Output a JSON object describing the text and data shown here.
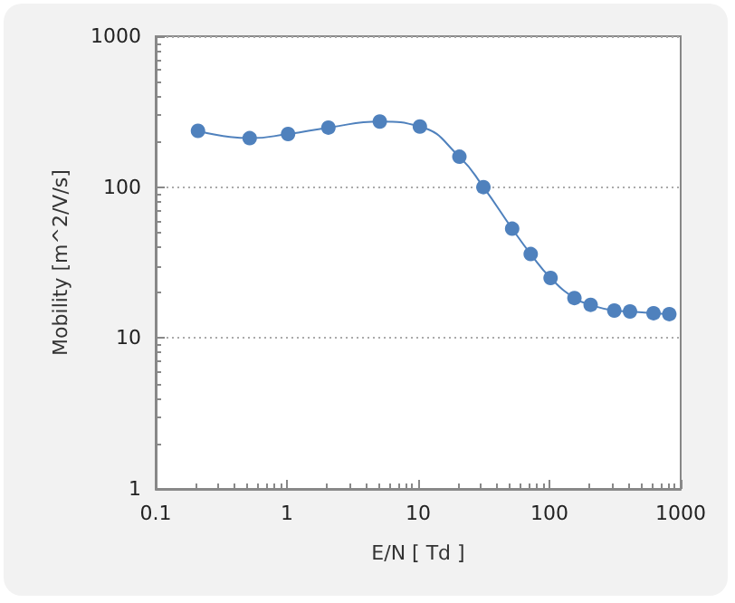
{
  "chart_data": {
    "type": "line",
    "xlabel": "E/N [ Td ]",
    "ylabel": "Mobility [m^2/V/s]",
    "x": [
      0.21,
      0.52,
      1.02,
      2.07,
      5.1,
      10.3,
      20.6,
      31.4,
      52,
      72,
      102,
      155,
      206,
      312,
      411,
      621,
      819
    ],
    "series": [
      {
        "color": "#4f81bd",
        "values": [
          236,
          211,
          225,
          248,
          272,
          252,
          159,
          100,
          53,
          36,
          25,
          18.4,
          16.6,
          15.2,
          15.0,
          14.6,
          14.4
        ]
      }
    ],
    "log": "xy",
    "xlim": [
      0.1,
      1000
    ],
    "xticks": [
      0.1,
      1,
      10,
      100,
      1000
    ],
    "ylim": [
      1,
      1000
    ],
    "yticks": [
      1,
      10,
      100,
      1000
    ],
    "grid": "y",
    "marker": "circle"
  }
}
